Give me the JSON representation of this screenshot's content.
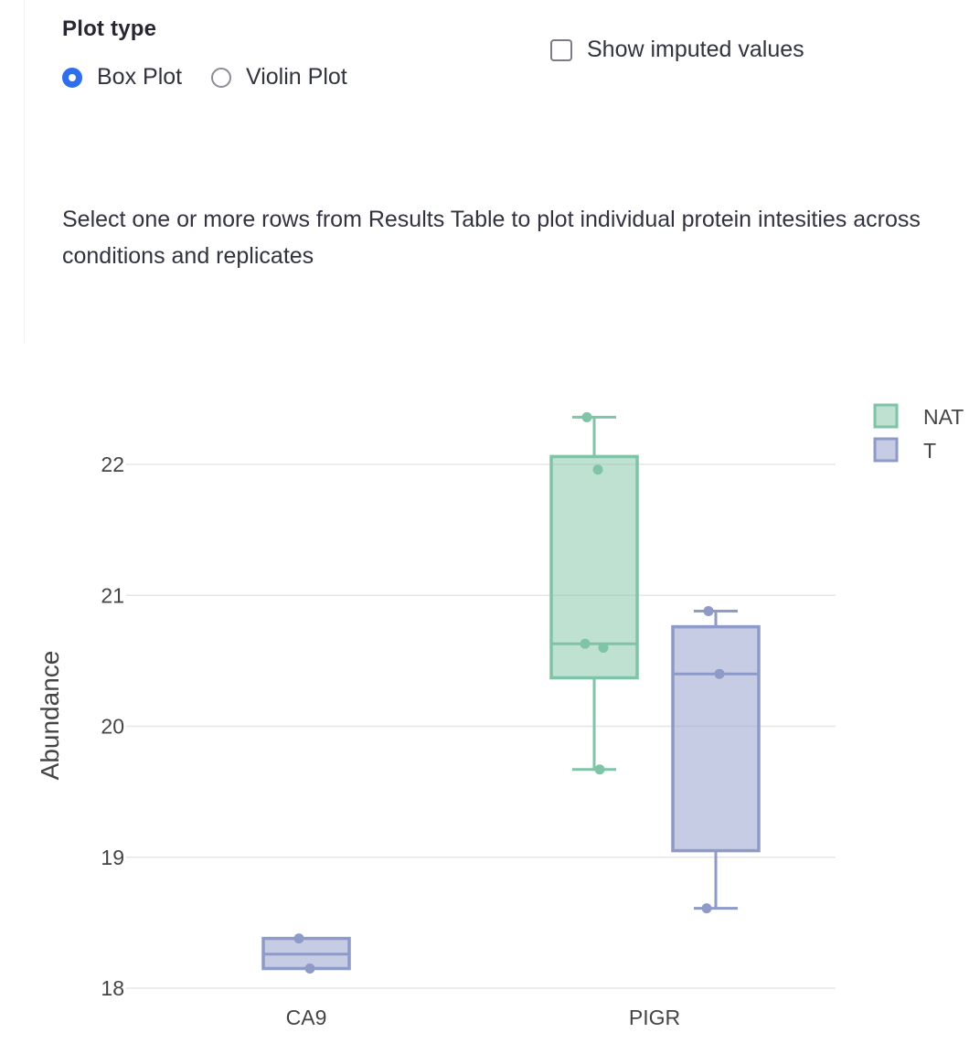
{
  "controls": {
    "plot_type_label": "Plot type",
    "plot_type_options": [
      "Box Plot",
      "Violin Plot"
    ],
    "plot_type_selected": "Box Plot",
    "show_imputed_label": "Show imputed values",
    "show_imputed_checked": false
  },
  "instructions": "Select one or more rows from Results Table to plot individual protein intesities across conditions and replicates",
  "colors": {
    "NAT": "#7fc4a6",
    "T": "#8e9ac8",
    "radio_selected": "#2f6fed"
  },
  "chart_data": {
    "type": "box",
    "ylabel": "Abundance",
    "xlabel": "",
    "categories": [
      "CA9",
      "PIGR"
    ],
    "yticks": [
      18,
      19,
      20,
      21,
      22
    ],
    "ylim": [
      17.85,
      22.6
    ],
    "grid": true,
    "legend_placement": "top-right",
    "series": [
      {
        "name": "NAT",
        "boxes": [
          {
            "category": "PIGR",
            "min": 19.67,
            "q1": 20.37,
            "median": 20.63,
            "q3": 22.06,
            "max": 22.36,
            "points": [
              22.36,
              21.96,
              20.63,
              20.6,
              19.67
            ]
          }
        ]
      },
      {
        "name": "T",
        "boxes": [
          {
            "category": "CA9",
            "min": 18.15,
            "q1": 18.15,
            "median": 18.26,
            "q3": 18.38,
            "max": 18.38,
            "points": [
              18.38,
              18.15
            ]
          },
          {
            "category": "PIGR",
            "min": 18.61,
            "q1": 19.05,
            "median": 20.4,
            "q3": 20.76,
            "max": 20.88,
            "points": [
              20.88,
              20.4,
              18.61
            ]
          }
        ]
      }
    ]
  }
}
